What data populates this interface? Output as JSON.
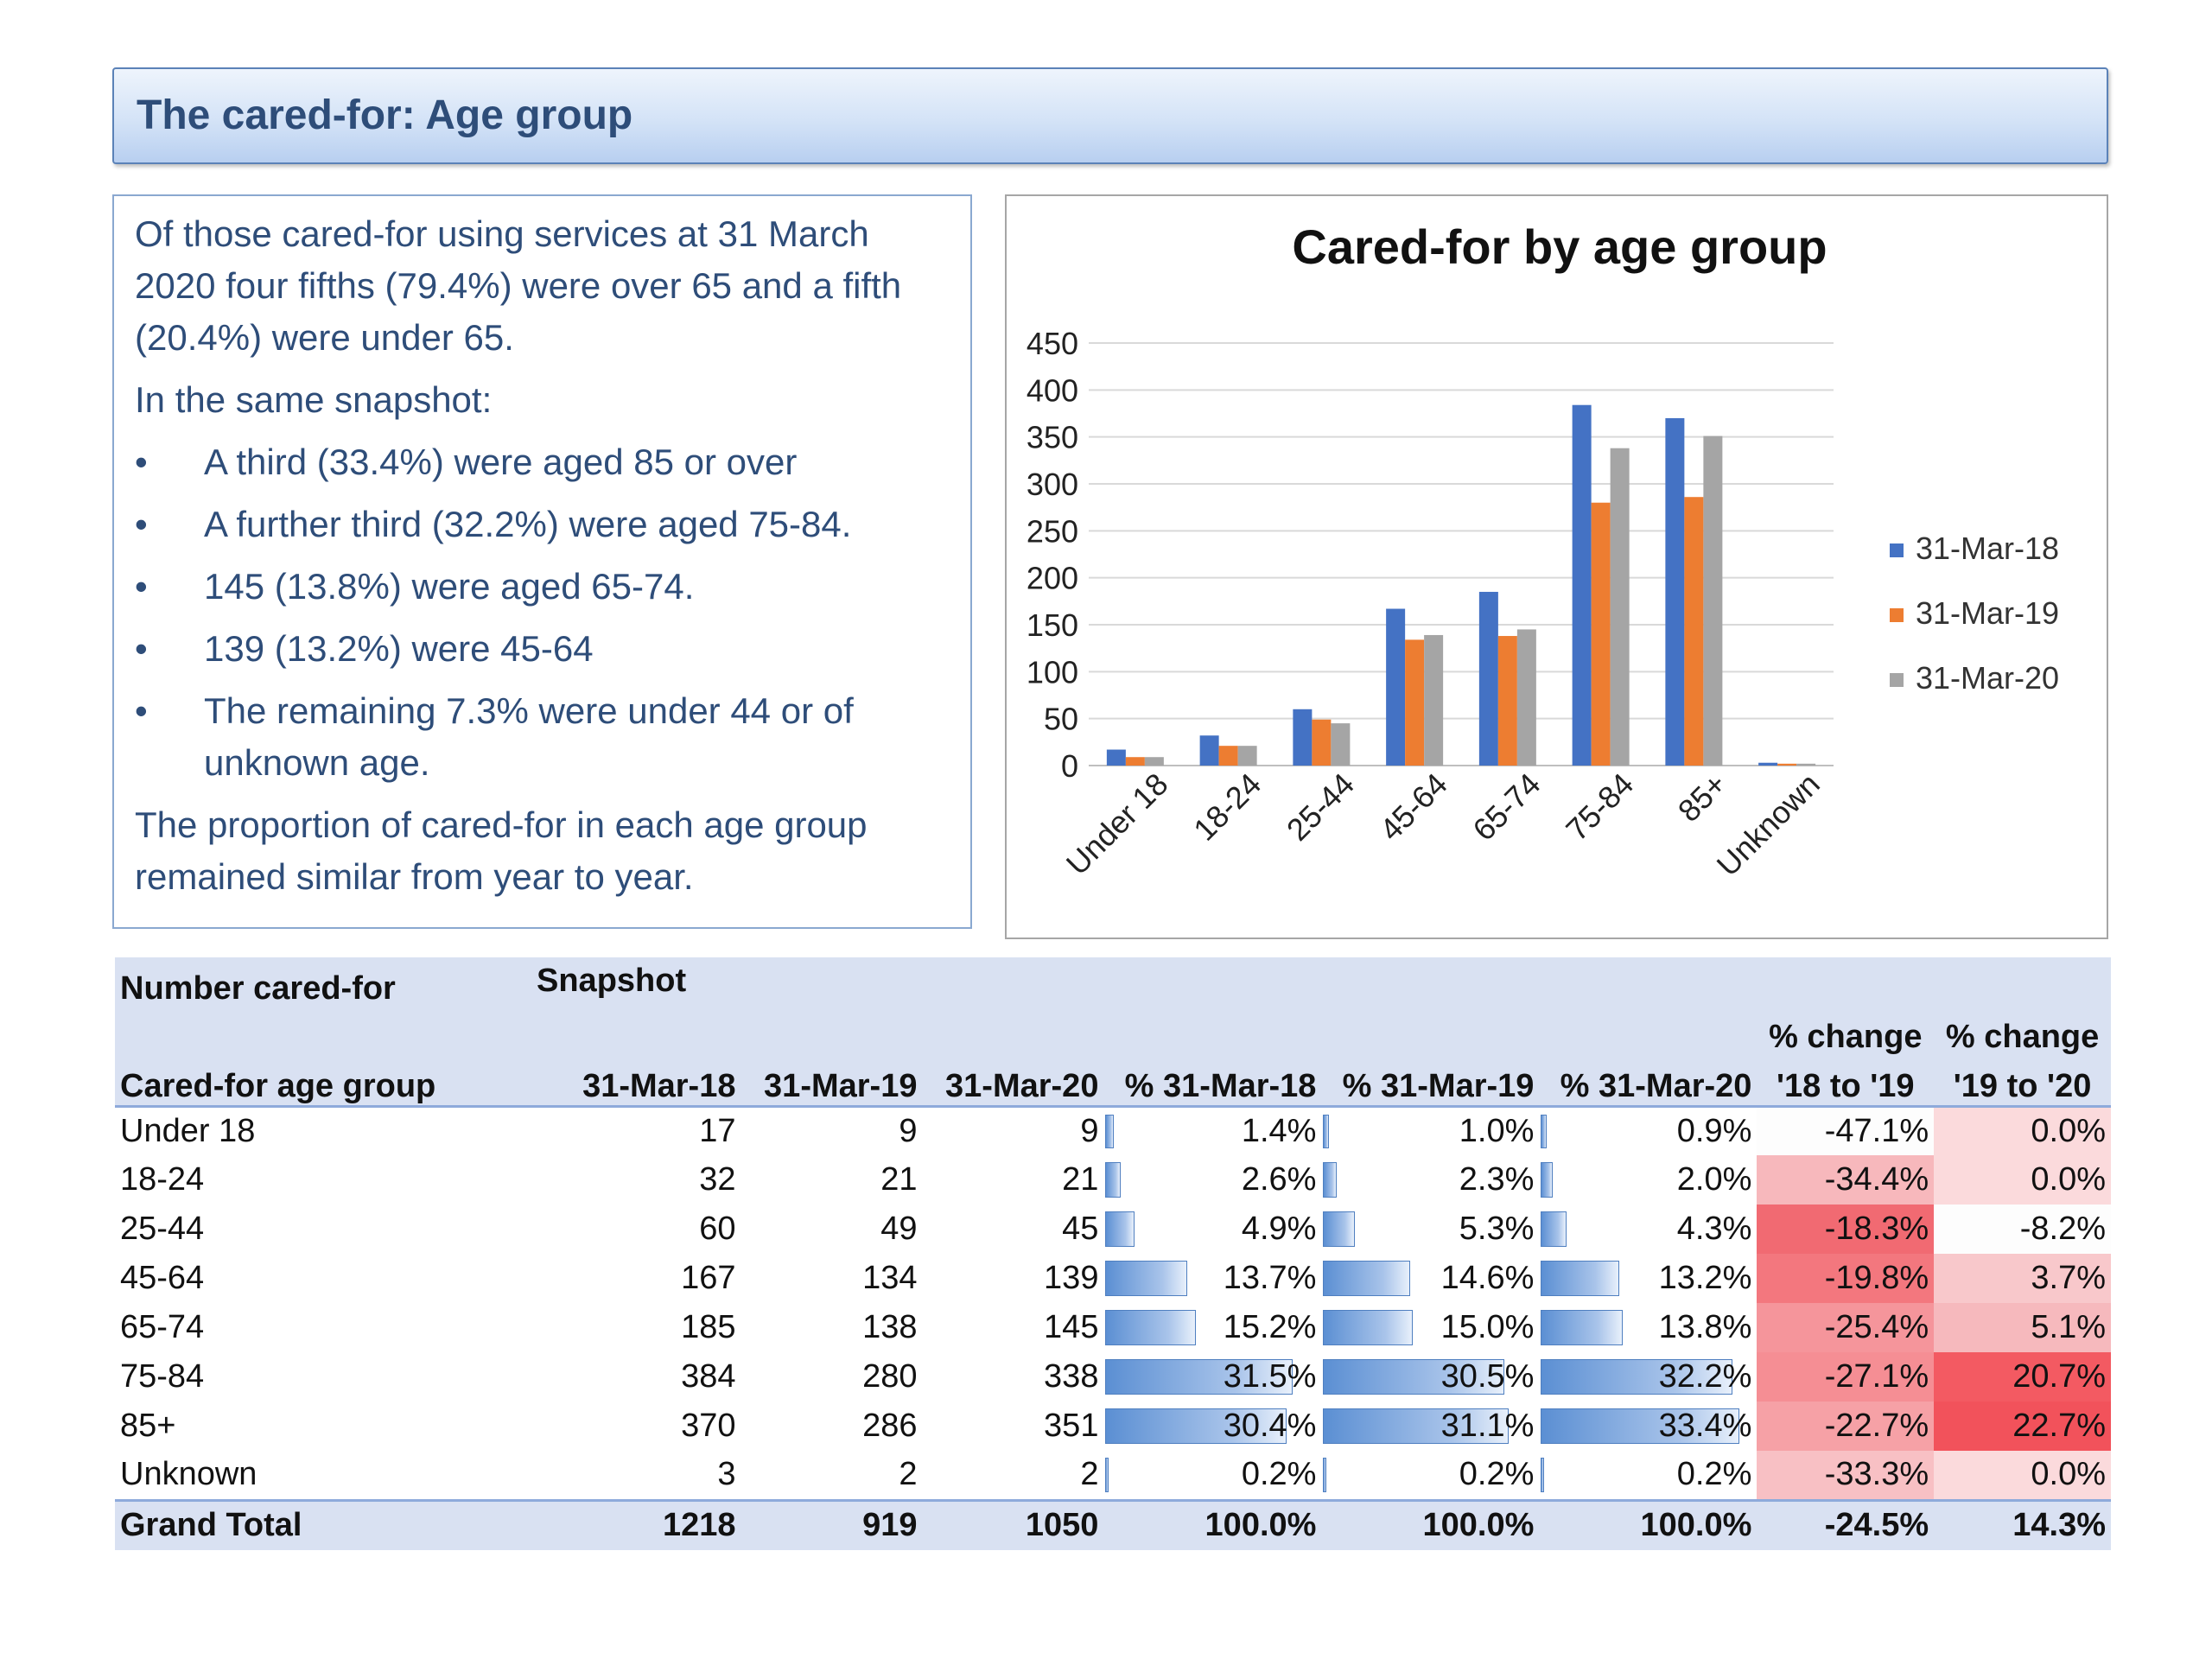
{
  "page_title": "The cared-for: Age group",
  "summary": {
    "intro": "Of those cared-for using services at 31 March 2020 four fifths (79.4%) were over 65 and a fifth (20.4%) were under 65.",
    "lead": "In the same snapshot:",
    "bullet_char": "•",
    "bullets": [
      "A third (33.4%) were aged 85 or over",
      "A further third (32.2%) were aged 75-84.",
      "145 (13.8%) were aged 65-74.",
      "139 (13.2%) were 45-64",
      "The remaining 7.3% were under 44 or of unknown age."
    ],
    "closing": "The proportion of cared-for in each age group remained similar from year to year."
  },
  "chart_data": {
    "type": "bar",
    "title": "Cared-for by age group",
    "categories": [
      "Under 18",
      "18-24",
      "25-44",
      "45-64",
      "65-74",
      "75-84",
      "85+",
      "Unknown"
    ],
    "series": [
      {
        "name": "31-Mar-18",
        "color": "#4472c4",
        "values": [
          17,
          32,
          60,
          167,
          185,
          384,
          370,
          3
        ]
      },
      {
        "name": "31-Mar-19",
        "color": "#ed7d31",
        "values": [
          9,
          21,
          49,
          134,
          138,
          280,
          286,
          2
        ]
      },
      {
        "name": "31-Mar-20",
        "color": "#a5a5a5",
        "values": [
          9,
          21,
          45,
          139,
          145,
          338,
          351,
          2
        ]
      }
    ],
    "ylim": [
      0,
      450
    ],
    "yticks": [
      0,
      50,
      100,
      150,
      200,
      250,
      300,
      350,
      400,
      450
    ],
    "grid": true,
    "legend_position": "right"
  },
  "table": {
    "header_left": "Number cared-for",
    "header_snapshot": "Snapshot",
    "change_header_1": [
      "% change",
      "'18 to '19"
    ],
    "change_header_2": [
      "% change",
      "'19 to '20"
    ],
    "columns": [
      "Cared-for age group",
      "31-Mar-18",
      "31-Mar-19",
      "31-Mar-20",
      "% 31-Mar-18",
      "% 31-Mar-19",
      "% 31-Mar-20"
    ],
    "rows": [
      {
        "group": "Under 18",
        "n18": "17",
        "n19": "9",
        "n20": "9",
        "p18": "1.4%",
        "p19": "1.0%",
        "p20": "0.9%",
        "c1819": "-47.1%",
        "c1920": "0.0%"
      },
      {
        "group": "18-24",
        "n18": "32",
        "n19": "21",
        "n20": "21",
        "p18": "2.6%",
        "p19": "2.3%",
        "p20": "2.0%",
        "c1819": "-34.4%",
        "c1920": "0.0%"
      },
      {
        "group": "25-44",
        "n18": "60",
        "n19": "49",
        "n20": "45",
        "p18": "4.9%",
        "p19": "5.3%",
        "p20": "4.3%",
        "c1819": "-18.3%",
        "c1920": "-8.2%"
      },
      {
        "group": "45-64",
        "n18": "167",
        "n19": "134",
        "n20": "139",
        "p18": "13.7%",
        "p19": "14.6%",
        "p20": "13.2%",
        "c1819": "-19.8%",
        "c1920": "3.7%"
      },
      {
        "group": "65-74",
        "n18": "185",
        "n19": "138",
        "n20": "145",
        "p18": "15.2%",
        "p19": "15.0%",
        "p20": "13.8%",
        "c1819": "-25.4%",
        "c1920": "5.1%"
      },
      {
        "group": "75-84",
        "n18": "384",
        "n19": "280",
        "n20": "338",
        "p18": "31.5%",
        "p19": "30.5%",
        "p20": "32.2%",
        "c1819": "-27.1%",
        "c1920": "20.7%"
      },
      {
        "group": "85+",
        "n18": "370",
        "n19": "286",
        "n20": "351",
        "p18": "30.4%",
        "p19": "31.1%",
        "p20": "33.4%",
        "c1819": "-22.7%",
        "c1920": "22.7%"
      },
      {
        "group": "Unknown",
        "n18": "3",
        "n19": "2",
        "n20": "2",
        "p18": "0.2%",
        "p19": "0.2%",
        "p20": "0.2%",
        "c1819": "-33.3%",
        "c1920": "0.0%"
      }
    ],
    "total": {
      "group": "Grand Total",
      "n18": "1218",
      "n19": "919",
      "n20": "1050",
      "p18": "100.0%",
      "p19": "100.0%",
      "p20": "100.0%",
      "c1819": "-24.5%",
      "c1920": "14.3%"
    },
    "change_colors": {
      "c1819": [
        "#fdfdfd",
        "#f7b8bc",
        "#f16a72",
        "#f3777e",
        "#f5959b",
        "#f58e94",
        "#f6a1a6",
        "#f8c0c4",
        "#ffffff"
      ],
      "c1920": [
        "#fbdadc",
        "#fbdadc",
        "#fdfdfd",
        "#f8c8cb",
        "#f6b9bd",
        "#f35a62",
        "#f2525b",
        "#fbdadc",
        "#ffffff"
      ]
    }
  }
}
